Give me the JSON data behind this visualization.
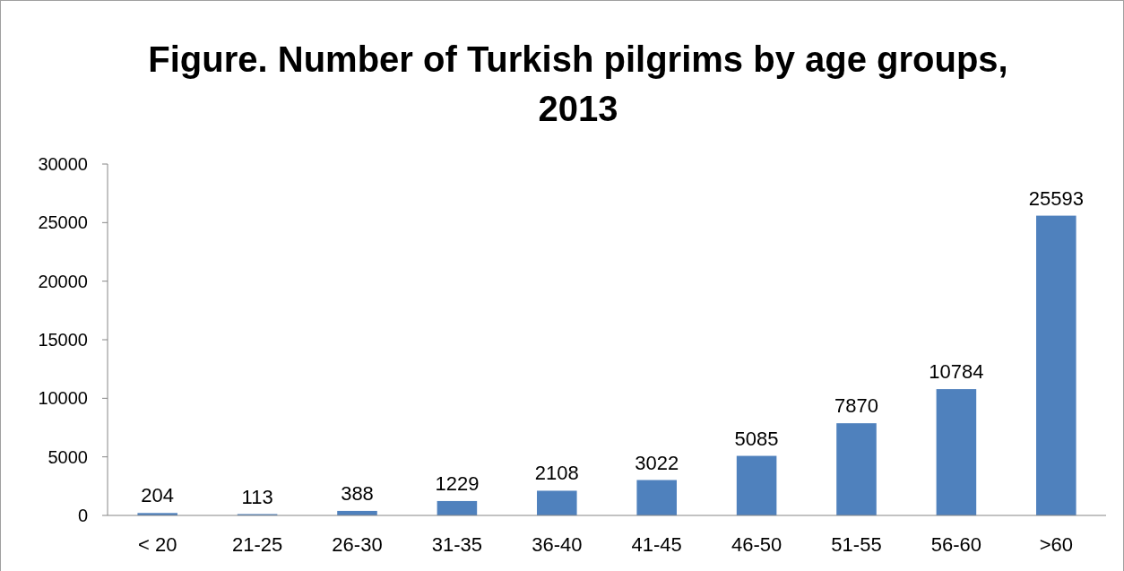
{
  "chart_data": {
    "type": "bar",
    "title": "Figure. Number of Turkish pilgrims by age groups, 2013",
    "categories": [
      "< 20",
      "21-25",
      "26-30",
      "31-35",
      "36-40",
      "41-45",
      "46-50",
      "51-55",
      "56-60",
      ">60"
    ],
    "values": [
      204,
      113,
      388,
      1229,
      2108,
      3022,
      5085,
      7870,
      10784,
      25593
    ],
    "color": "#4f81bd",
    "ylim": [
      0,
      30000
    ],
    "yticks": [
      0,
      5000,
      10000,
      15000,
      20000,
      25000,
      30000
    ],
    "grid": false,
    "data_labels": true
  }
}
